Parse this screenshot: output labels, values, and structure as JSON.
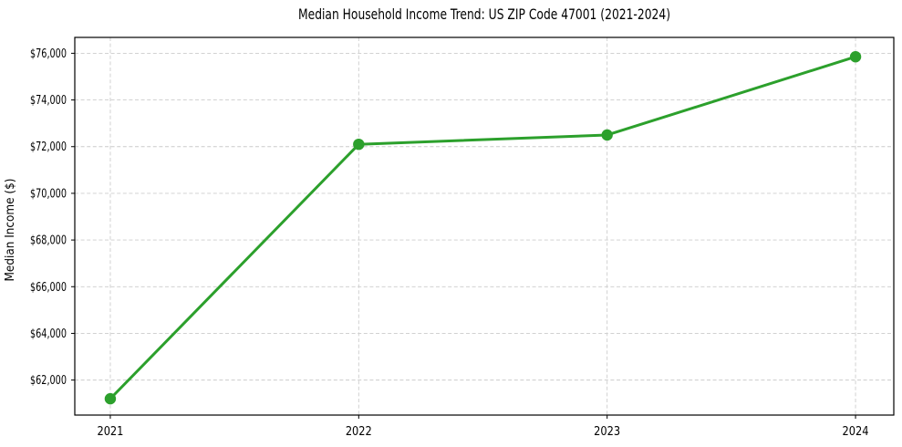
{
  "figure": {
    "background": "#ffffff"
  },
  "chart_data": {
    "type": "line",
    "title": "Median Household Income Trend: US ZIP Code 47001 (2021-2024)",
    "xlabel": "",
    "ylabel": "Median Income ($)",
    "x": [
      2021,
      2022,
      2023,
      2024
    ],
    "x_tick_labels": [
      "2021",
      "2022",
      "2023",
      "2024"
    ],
    "series": [
      {
        "name": "Median household income",
        "values": [
          61200,
          72100,
          72500,
          75850
        ],
        "color": "#2ca02c",
        "marker": "circle"
      }
    ],
    "y_ticks": [
      62000,
      64000,
      66000,
      68000,
      70000,
      72000,
      74000,
      76000
    ],
    "y_tick_labels": [
      "$62,000",
      "$64,000",
      "$66,000",
      "$68,000",
      "$70,000",
      "$72,000",
      "$74,000",
      "$76,000"
    ],
    "xlim": [
      2020.857,
      2024.154
    ],
    "ylim": [
      60500,
      76680
    ],
    "grid": true,
    "grid_color": "#cccccc",
    "grid_style": "dashed",
    "axis_color": "#000000",
    "text_color": "#000000",
    "legend": "none"
  }
}
